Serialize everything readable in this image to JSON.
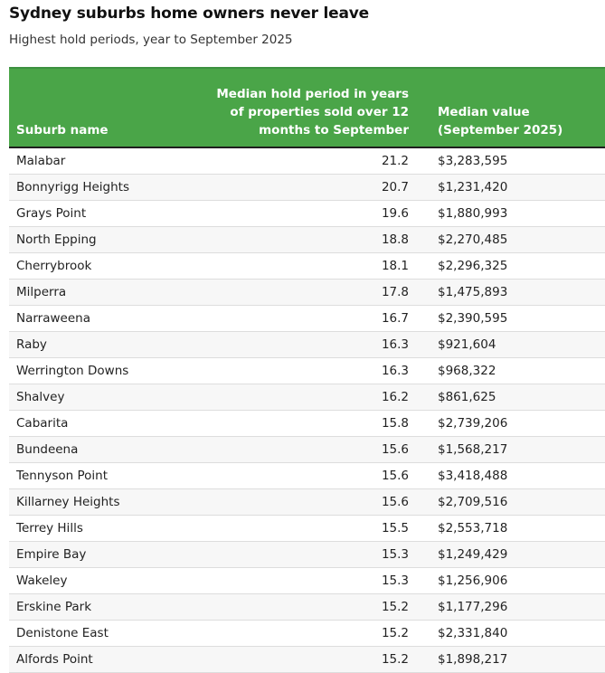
{
  "title": "Sydney suburbs home owners never leave",
  "subtitle": "Highest hold periods, year to September 2025",
  "colors": {
    "header_bg": "#4aa548",
    "header_text": "#ffffff",
    "header_rule": "#1f1f1f",
    "row_alt": "#f7f7f7"
  },
  "chart_data": {
    "type": "table",
    "title": "Sydney suburbs home owners never leave",
    "subtitle": "Highest hold periods, year to September 2025",
    "columns": [
      "Suburb name",
      "Median hold period in years of properties sold over 12 months to September",
      "Median value (September 2025)"
    ],
    "rows": [
      [
        "Malabar",
        "21.2",
        "$3,283,595"
      ],
      [
        "Bonnyrigg Heights",
        "20.7",
        "$1,231,420"
      ],
      [
        "Grays Point",
        "19.6",
        "$1,880,993"
      ],
      [
        "North Epping",
        "18.8",
        "$2,270,485"
      ],
      [
        "Cherrybrook",
        "18.1",
        "$2,296,325"
      ],
      [
        "Milperra",
        "17.8",
        "$1,475,893"
      ],
      [
        "Narraweena",
        "16.7",
        "$2,390,595"
      ],
      [
        "Raby",
        "16.3",
        "$921,604"
      ],
      [
        "Werrington Downs",
        "16.3",
        "$968,322"
      ],
      [
        "Shalvey",
        "16.2",
        "$861,625"
      ],
      [
        "Cabarita",
        "15.8",
        "$2,739,206"
      ],
      [
        "Bundeena",
        "15.6",
        "$1,568,217"
      ],
      [
        "Tennyson Point",
        "15.6",
        "$3,418,488"
      ],
      [
        "Killarney Heights",
        "15.6",
        "$2,709,516"
      ],
      [
        "Terrey Hills",
        "15.5",
        "$2,553,718"
      ],
      [
        "Empire Bay",
        "15.3",
        "$1,249,429"
      ],
      [
        "Wakeley",
        "15.3",
        "$1,256,906"
      ],
      [
        "Erskine Park",
        "15.2",
        "$1,177,296"
      ],
      [
        "Denistone East",
        "15.2",
        "$2,331,840"
      ],
      [
        "Alfords Point",
        "15.2",
        "$1,898,217"
      ]
    ]
  }
}
